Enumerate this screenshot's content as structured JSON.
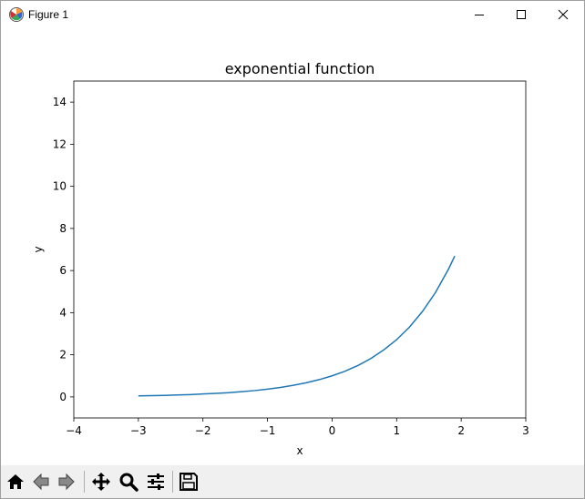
{
  "window": {
    "title": "Figure 1"
  },
  "toolbar": {
    "items": [
      {
        "icon": "home-icon"
      },
      {
        "icon": "back-arrow-icon"
      },
      {
        "icon": "forward-arrow-icon"
      },
      {
        "icon": "pan-move-icon"
      },
      {
        "icon": "zoom-magnifier-icon"
      },
      {
        "icon": "configure-subplots-icon"
      },
      {
        "icon": "save-disk-icon"
      }
    ]
  },
  "chart_data": {
    "type": "line",
    "title": "exponential function",
    "xlabel": "x",
    "ylabel": "y",
    "xlim": [
      -4,
      3
    ],
    "ylim": [
      -1,
      15
    ],
    "x_ticks": [
      -4,
      -3,
      -2,
      -1,
      0,
      1,
      2,
      3
    ],
    "y_ticks": [
      0,
      2,
      4,
      6,
      8,
      10,
      12,
      14
    ],
    "x_tick_labels": [
      "−4",
      "−3",
      "−2",
      "−1",
      "0",
      "1",
      "2",
      "3"
    ],
    "y_tick_labels": [
      "0",
      "2",
      "4",
      "6",
      "8",
      "10",
      "12",
      "14"
    ],
    "grid": false,
    "series": [
      {
        "color": "#1f77b4",
        "x": [
          -3.0,
          -2.8,
          -2.6,
          -2.4,
          -2.2,
          -2.0,
          -1.8,
          -1.6,
          -1.4,
          -1.2,
          -1.0,
          -0.8,
          -0.6,
          -0.4,
          -0.2,
          0.0,
          0.2,
          0.4,
          0.6,
          0.8,
          1.0,
          1.2,
          1.4,
          1.6,
          1.8,
          1.9
        ],
        "y": [
          0.05,
          0.06,
          0.07,
          0.09,
          0.11,
          0.14,
          0.17,
          0.2,
          0.25,
          0.3,
          0.37,
          0.45,
          0.55,
          0.67,
          0.82,
          1.0,
          1.22,
          1.49,
          1.82,
          2.23,
          2.72,
          3.32,
          4.06,
          4.95,
          6.05,
          6.69
        ]
      }
    ]
  }
}
